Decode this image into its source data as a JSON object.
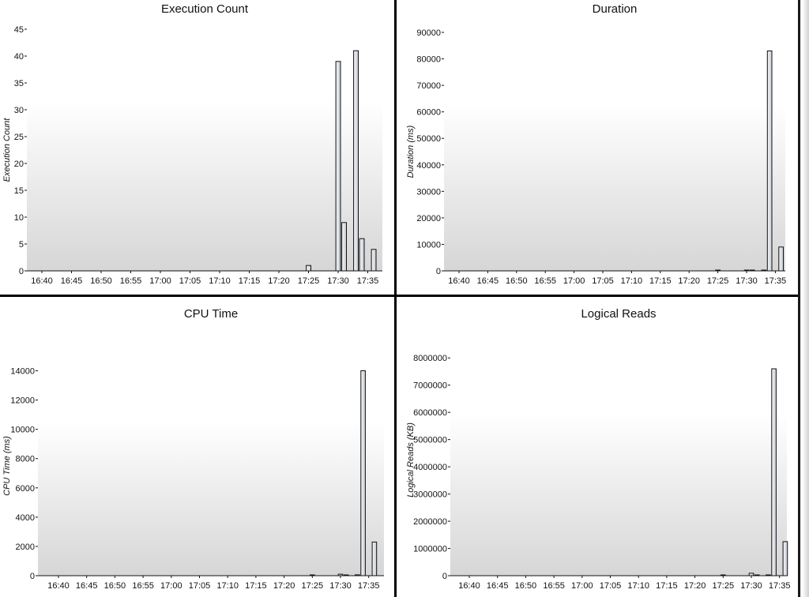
{
  "chart_data": [
    {
      "type": "bar",
      "title": "Execution Count",
      "ylabel": "Execution Count",
      "xlabel": "",
      "ylim": [
        0,
        45
      ],
      "yticks": [
        0,
        5,
        10,
        15,
        20,
        25,
        30,
        35,
        40,
        45
      ],
      "xticks": [
        "16:40",
        "16:45",
        "16:50",
        "16:55",
        "17:00",
        "17:05",
        "17:10",
        "17:15",
        "17:20",
        "17:25",
        "17:30",
        "17:35"
      ],
      "x": [
        "17:25",
        "17:30",
        "17:31",
        "17:33",
        "17:34",
        "17:36"
      ],
      "values": [
        1,
        39,
        9,
        41,
        6,
        4
      ],
      "grid": false,
      "legend": "none"
    },
    {
      "type": "bar",
      "title": "Duration",
      "ylabel": "Duration (ms)",
      "xlabel": "",
      "ylim": [
        0,
        90000
      ],
      "yticks": [
        0,
        10000,
        20000,
        30000,
        40000,
        50000,
        60000,
        70000,
        80000,
        90000
      ],
      "xticks": [
        "16:40",
        "16:45",
        "16:50",
        "16:55",
        "17:00",
        "17:05",
        "17:10",
        "17:15",
        "17:20",
        "17:25",
        "17:30",
        "17:35"
      ],
      "x": [
        "17:25",
        "17:30",
        "17:31",
        "17:33",
        "17:34",
        "17:36"
      ],
      "values": [
        200,
        100,
        100,
        200,
        83000,
        9000
      ],
      "grid": false,
      "legend": "none"
    },
    {
      "type": "bar",
      "title": "CPU Time",
      "ylabel": "CPU Time (ms)",
      "xlabel": "",
      "ylim": [
        0,
        15000
      ],
      "yticks": [
        0,
        2000,
        4000,
        6000,
        8000,
        10000,
        12000,
        14000
      ],
      "xticks": [
        "16:40",
        "16:45",
        "16:50",
        "16:55",
        "17:00",
        "17:05",
        "17:10",
        "17:15",
        "17:20",
        "17:25",
        "17:30",
        "17:35"
      ],
      "x": [
        "17:25",
        "17:30",
        "17:31",
        "17:33",
        "17:34",
        "17:36"
      ],
      "values": [
        20,
        100,
        50,
        60,
        14000,
        2300
      ],
      "grid": false,
      "legend": "none"
    },
    {
      "type": "bar",
      "title": "Logical Reads",
      "ylabel": "Logical Reads (KB)",
      "xlabel": "",
      "ylim": [
        0,
        8500000
      ],
      "yticks": [
        0,
        1000000,
        2000000,
        3000000,
        4000000,
        5000000,
        6000000,
        7000000,
        8000000
      ],
      "xticks": [
        "16:40",
        "16:45",
        "16:50",
        "16:55",
        "17:00",
        "17:05",
        "17:10",
        "17:15",
        "17:20",
        "17:25",
        "17:30",
        "17:35"
      ],
      "x": [
        "17:25",
        "17:30",
        "17:31",
        "17:33",
        "17:34",
        "17:36"
      ],
      "values": [
        15000,
        90000,
        20000,
        30000,
        7600000,
        1250000
      ],
      "grid": false,
      "legend": "none"
    }
  ],
  "colors": {
    "bar_fill_light": "#f4f6f8",
    "bar_fill_dark": "#c8ccd2",
    "bar_stroke": "#111111",
    "plot_bg_top": "#ffffff",
    "plot_bg_bottom": "#d6d6d6",
    "axis": "#111111"
  }
}
